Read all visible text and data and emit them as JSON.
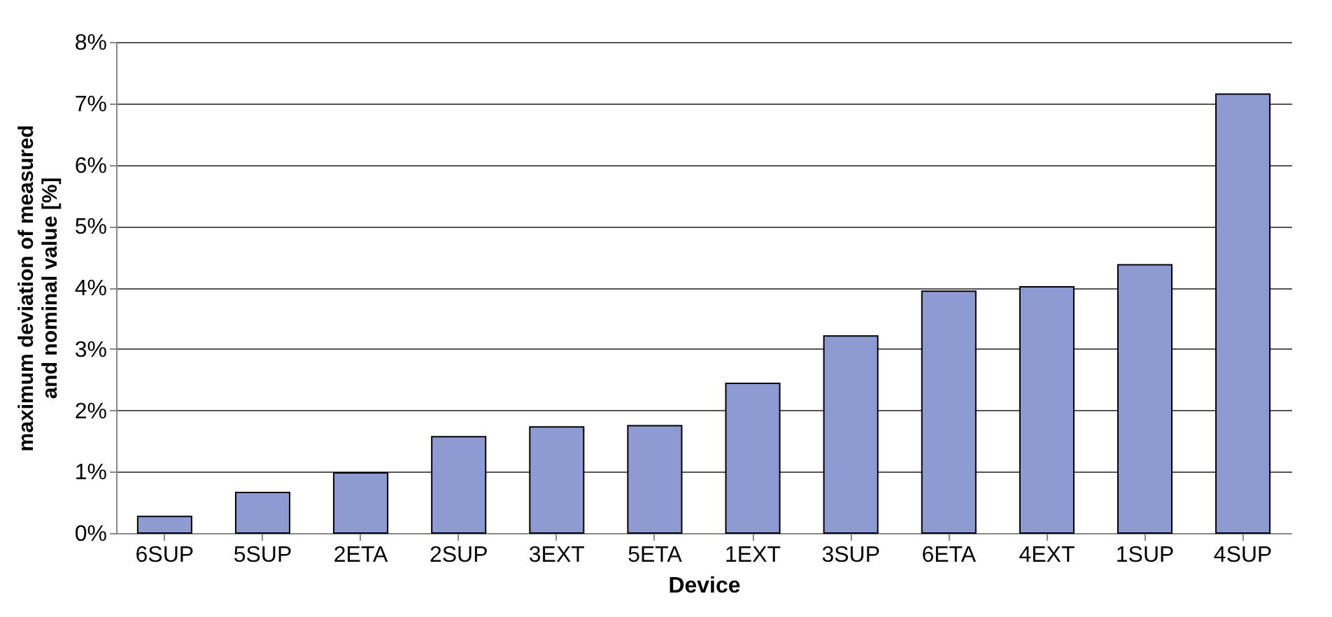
{
  "chart_data": {
    "type": "bar",
    "xlabel": "Device",
    "ylabel": "maximum deviation of measured\nand nominal value [%]",
    "categories": [
      "6SUP",
      "5SUP",
      "2ETA",
      "2SUP",
      "3EXT",
      "5ETA",
      "1EXT",
      "3SUP",
      "6ETA",
      "4EXT",
      "1SUP",
      "4SUP"
    ],
    "values": [
      0.27,
      0.66,
      0.98,
      1.57,
      1.73,
      1.75,
      2.44,
      3.21,
      3.94,
      4.01,
      4.37,
      7.15
    ],
    "color": "#8e9bd2",
    "ylim": [
      0,
      8
    ],
    "yticks": [
      {
        "value": 0,
        "label": "0%"
      },
      {
        "value": 1,
        "label": "1%"
      },
      {
        "value": 2,
        "label": "2%"
      },
      {
        "value": 3,
        "label": "3%"
      },
      {
        "value": 4,
        "label": "4%"
      },
      {
        "value": 5,
        "label": "5%"
      },
      {
        "value": 6,
        "label": "6%"
      },
      {
        "value": 7,
        "label": "7%"
      },
      {
        "value": 8,
        "label": "8%"
      }
    ],
    "grid": "y"
  }
}
